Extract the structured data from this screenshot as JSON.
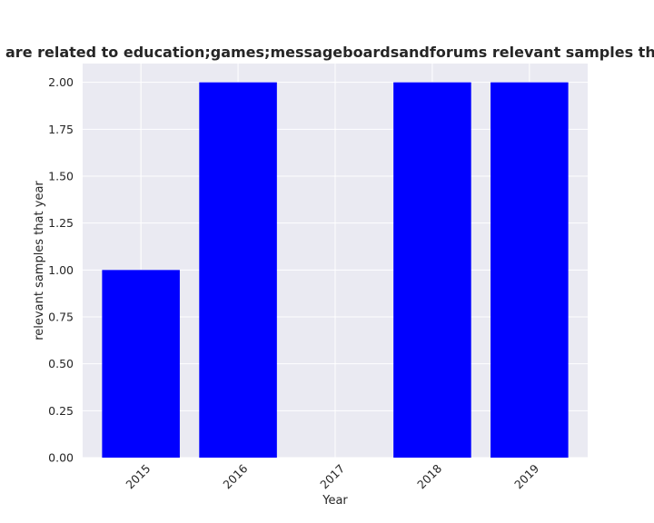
{
  "chart_data": {
    "type": "bar",
    "title": "are related to education;games;messageboardsandforums relevant samples that year in priva",
    "xlabel": "Year",
    "ylabel": "relevant samples that year",
    "categories": [
      "2015",
      "2016",
      "2017",
      "2018",
      "2019"
    ],
    "values": [
      1,
      2,
      0,
      2,
      2
    ],
    "ylim": [
      0,
      2.1
    ],
    "yticks": [
      "0.00",
      "0.25",
      "0.50",
      "0.75",
      "1.00",
      "1.25",
      "1.50",
      "1.75",
      "2.00"
    ],
    "grid": true,
    "bar_color": "#0000ff",
    "plot_background": "#eaeaf2",
    "grid_color": "#ffffff"
  }
}
